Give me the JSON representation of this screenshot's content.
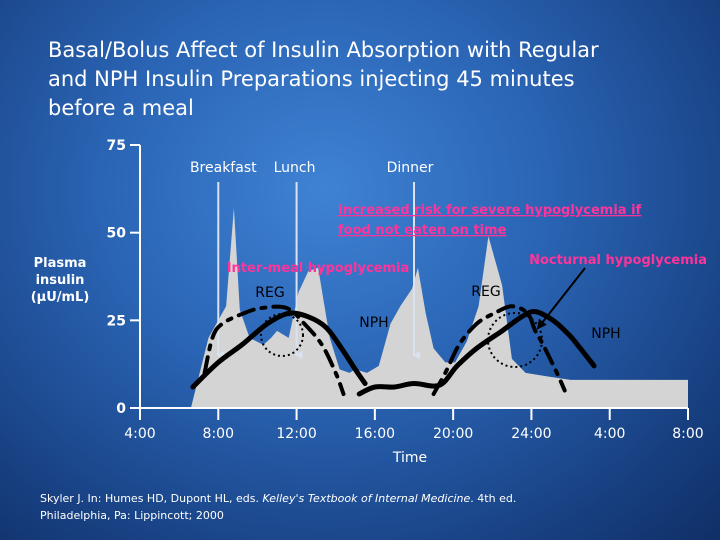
{
  "title": {
    "line1": "Basal/Bolus Affect of Insulin Absorption with Regular",
    "line2": "and NPH Insulin Preparations injecting 45 minutes",
    "line3": "before a meal"
  },
  "citation": {
    "line1_prefix": "Skyler J. In: Humes HD, Dupont HL, eds.",
    "line1_title": "Kelley's Textbook of Internal Medicine",
    "line1_suffix": ". 4th ed.",
    "line2": "Philadelphia, Pa: Lippincott; 2000"
  },
  "colors": {
    "warning": "#ff3399",
    "normal_area": "#d4d4d4",
    "curve": "#000000",
    "arrow": "#d9e2ee"
  },
  "chart_data": {
    "type": "area",
    "xlabel": "Time",
    "ylabel_lines": [
      "Plasma",
      "insulin",
      "(µU/mL)"
    ],
    "x_ticks": [
      {
        "label": "4:00",
        "hour": 4
      },
      {
        "label": "8:00",
        "hour": 8
      },
      {
        "label": "12:00",
        "hour": 12
      },
      {
        "label": "16:00",
        "hour": 16
      },
      {
        "label": "20:00",
        "hour": 20
      },
      {
        "label": "24:00",
        "hour": 24
      },
      {
        "label": "4:00",
        "hour": 28
      },
      {
        "label": "8:00",
        "hour": 32
      }
    ],
    "y_ticks": [
      0,
      25,
      50,
      75
    ],
    "ylim": [
      0,
      75
    ],
    "xlim": [
      4,
      32
    ],
    "meals": [
      {
        "label": "Breakfast",
        "hour": 8.0
      },
      {
        "label": "Lunch",
        "hour": 12.0
      },
      {
        "label": "Dinner",
        "hour": 18.0
      }
    ],
    "normal_insulin": [
      [
        6.6,
        0
      ],
      [
        7.5,
        20
      ],
      [
        8.4,
        29
      ],
      [
        8.8,
        57
      ],
      [
        9.1,
        28
      ],
      [
        9.6,
        20
      ],
      [
        10.3,
        18
      ],
      [
        10.7,
        20
      ],
      [
        11.0,
        22
      ],
      [
        11.6,
        20
      ],
      [
        12.1,
        33
      ],
      [
        12.6,
        39
      ],
      [
        13.1,
        40
      ],
      [
        13.7,
        20
      ],
      [
        14.2,
        11
      ],
      [
        14.7,
        10
      ],
      [
        15.0,
        11
      ],
      [
        15.6,
        10
      ],
      [
        16.2,
        12
      ],
      [
        16.8,
        24
      ],
      [
        17.3,
        29
      ],
      [
        17.9,
        34
      ],
      [
        18.2,
        40
      ],
      [
        18.6,
        27
      ],
      [
        19.0,
        17
      ],
      [
        19.6,
        13
      ],
      [
        20.1,
        13
      ],
      [
        20.7,
        19
      ],
      [
        21.3,
        29
      ],
      [
        21.8,
        49
      ],
      [
        22.5,
        35
      ],
      [
        23.0,
        14
      ],
      [
        23.7,
        10
      ],
      [
        24.8,
        9
      ],
      [
        26.0,
        8
      ],
      [
        27.0,
        8
      ],
      [
        28.0,
        8
      ],
      [
        29.0,
        8
      ],
      [
        30.0,
        8
      ],
      [
        31.0,
        8
      ],
      [
        32.0,
        8
      ],
      [
        32.0,
        0
      ]
    ],
    "series": [
      {
        "name": "REG",
        "style": "dashed",
        "points": [
          [
            7.3,
            10
          ],
          [
            7.7,
            20
          ],
          [
            8.2,
            24
          ],
          [
            9.3,
            27
          ],
          [
            10.2,
            28.5
          ],
          [
            11.5,
            28.5
          ],
          [
            12.4,
            24
          ],
          [
            13.3,
            18
          ],
          [
            14.0,
            10
          ],
          [
            14.4,
            4
          ]
        ]
      },
      {
        "name": "REG",
        "style": "dashed",
        "points": [
          [
            19.0,
            4
          ],
          [
            19.6,
            10
          ],
          [
            20.3,
            18
          ],
          [
            21.2,
            24
          ],
          [
            22.1,
            27
          ],
          [
            23.0,
            29
          ],
          [
            23.8,
            27
          ],
          [
            24.2,
            22
          ],
          [
            24.6,
            18
          ],
          [
            25.3,
            10
          ],
          [
            25.7,
            5
          ]
        ]
      },
      {
        "name": "NPH",
        "style": "solid",
        "points": [
          [
            6.7,
            6
          ],
          [
            8.0,
            13
          ],
          [
            9.2,
            18
          ],
          [
            10.5,
            24
          ],
          [
            11.6,
            27
          ],
          [
            12.6,
            26
          ],
          [
            13.5,
            23
          ],
          [
            14.3,
            17
          ],
          [
            15.0,
            11
          ],
          [
            15.5,
            7
          ]
        ]
      },
      {
        "name": "NPH",
        "style": "solid",
        "points": [
          [
            15.2,
            4
          ],
          [
            16.0,
            6
          ],
          [
            17.0,
            6
          ],
          [
            18.0,
            7
          ],
          [
            19.3,
            6.5
          ],
          [
            20.2,
            12
          ],
          [
            21.2,
            17
          ],
          [
            22.5,
            22
          ],
          [
            23.5,
            26
          ],
          [
            24.2,
            27.5
          ],
          [
            25.1,
            25
          ],
          [
            25.9,
            21
          ],
          [
            26.5,
            17
          ],
          [
            27.2,
            12
          ]
        ]
      }
    ],
    "annotations": {
      "interMeal": "Inter-meal hypoglycemia",
      "severe1": "Increased risk for severe hypoglycemia if",
      "severe2": "food not eaten on time",
      "nocturnal": "Nocturnal hypoglycemia",
      "reg": "REG",
      "nph": "NPH"
    }
  }
}
